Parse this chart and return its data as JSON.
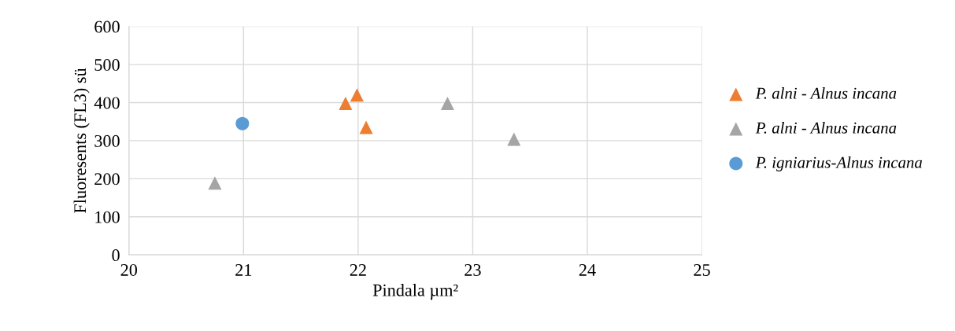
{
  "chart_data": {
    "type": "scatter",
    "xlabel": "Pindala µm²",
    "ylabel": "Fluoresents (FL3) sü",
    "xlim": [
      20,
      25
    ],
    "xticks": [
      20,
      21,
      22,
      23,
      24,
      25
    ],
    "ylim": [
      0,
      600
    ],
    "yticks": [
      0,
      100,
      200,
      300,
      400,
      500,
      600
    ],
    "grid": true,
    "legend": "right",
    "series": [
      {
        "name": "P. alni - Alnus incana",
        "color": "#ed7d31",
        "marker": "triangle",
        "x": [
          21.89,
          21.99,
          22.07
        ],
        "values": [
          398,
          420,
          335
        ]
      },
      {
        "name": "P. alni - Alnus incana",
        "color": "#a5a5a5",
        "marker": "triangle",
        "x": [
          20.75,
          22.78,
          23.36
        ],
        "values": [
          189,
          398,
          304
        ]
      },
      {
        "name": "P. igniarius-Alnus incana",
        "color": "#5b9bd5",
        "marker": "circle",
        "x": [
          20.99
        ],
        "values": [
          345
        ]
      }
    ]
  }
}
